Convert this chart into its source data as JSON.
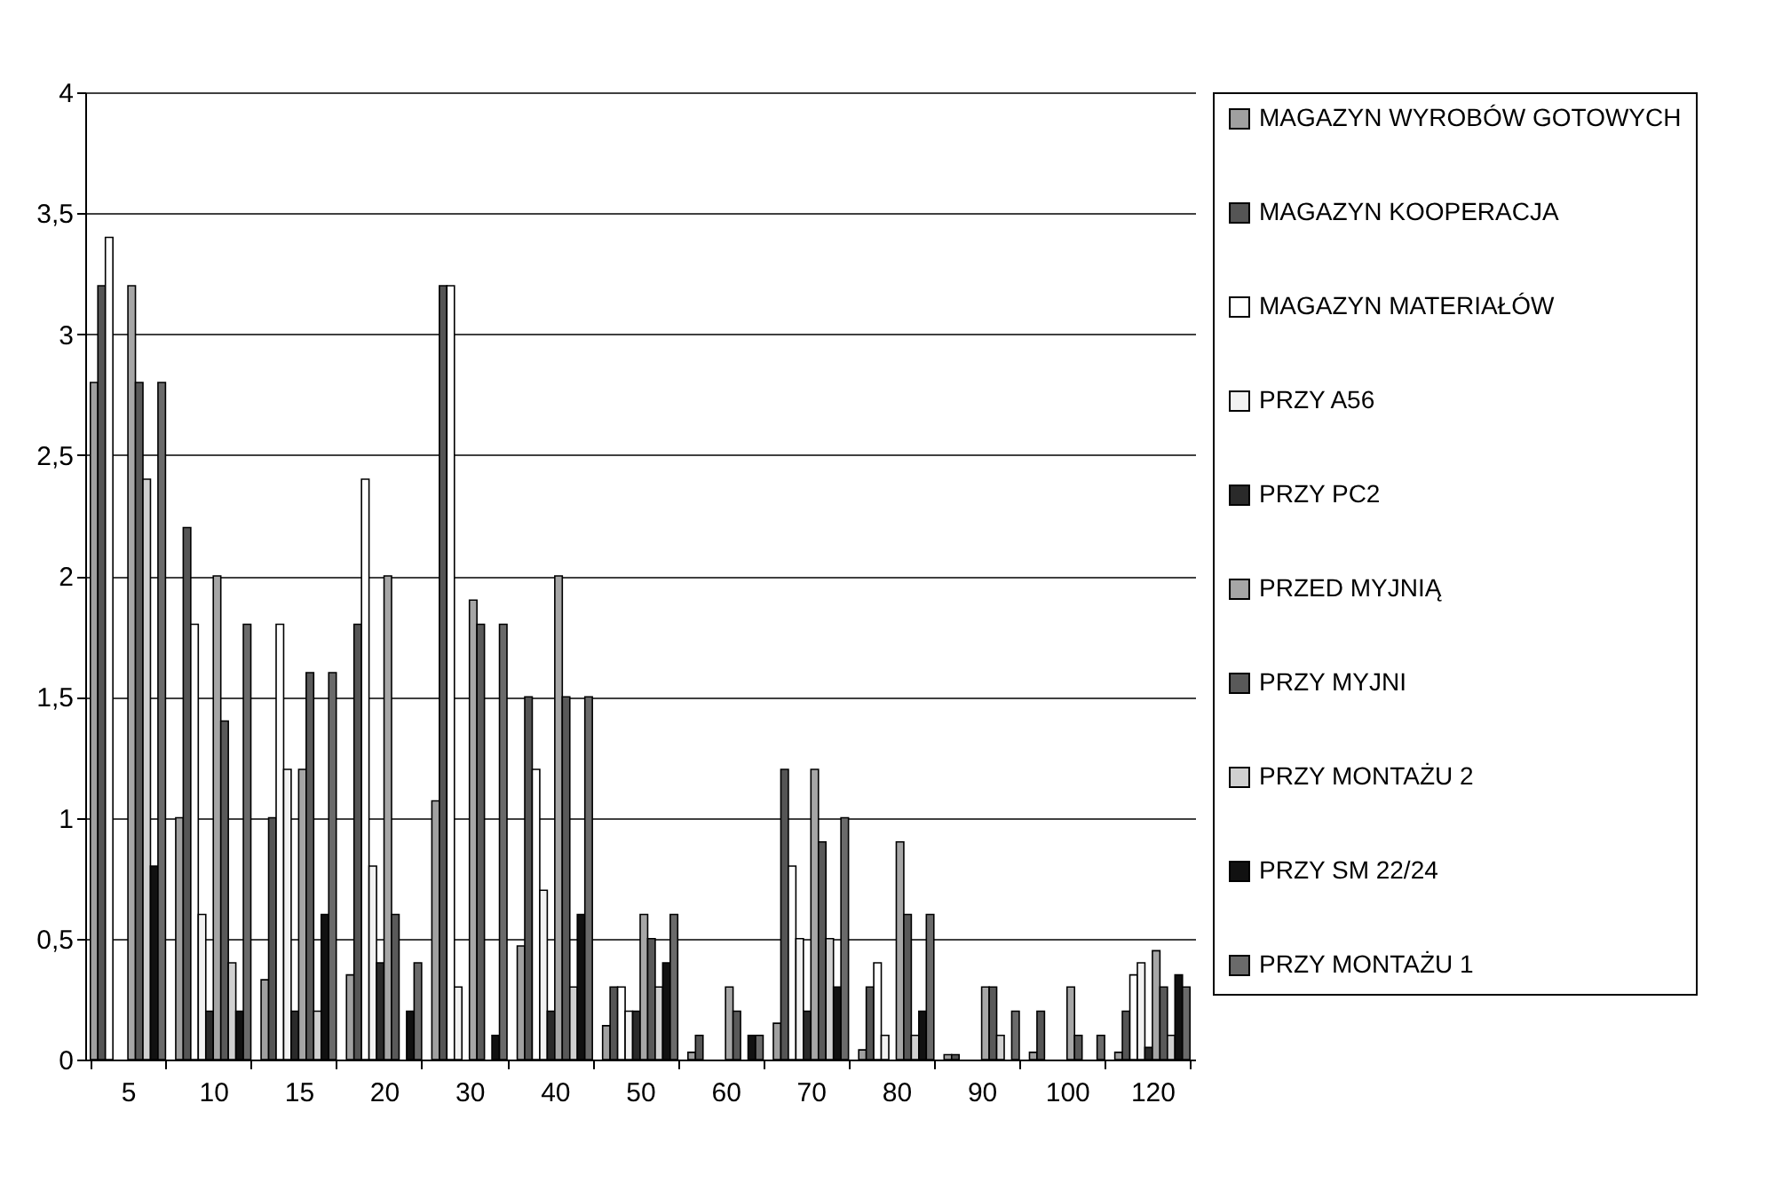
{
  "chart_data": {
    "type": "bar",
    "categories": [
      "5",
      "10",
      "15",
      "20",
      "30",
      "40",
      "50",
      "60",
      "70",
      "80",
      "90",
      "100",
      "120"
    ],
    "series": [
      {
        "name": "MAGAZYN WYROBÓW GOTOWYCH",
        "color": "#a0a0a0",
        "values": [
          2.8,
          1.0,
          0.33,
          0.35,
          1.07,
          0.47,
          0.14,
          0.03,
          0.15,
          0.04,
          0.02,
          0.03,
          0.03
        ]
      },
      {
        "name": "MAGAZYN KOOPERACJA",
        "color": "#555555",
        "values": [
          3.2,
          2.2,
          1.0,
          1.8,
          3.2,
          1.5,
          0.3,
          0.1,
          1.2,
          0.3,
          0.02,
          0.2,
          0.2
        ]
      },
      {
        "name": "MAGAZYN MATERIAŁÓW",
        "color": "#ffffff",
        "values": [
          3.4,
          1.8,
          1.8,
          2.4,
          3.2,
          1.2,
          0.3,
          0,
          0.8,
          0.4,
          0,
          0,
          0.35
        ]
      },
      {
        "name": "PRZY A56",
        "color": "#f2f2f2",
        "values": [
          0,
          0.6,
          1.2,
          0.8,
          0.3,
          0.7,
          0.2,
          0,
          0.5,
          0.1,
          0,
          0,
          0.4
        ]
      },
      {
        "name": "PRZY PC2",
        "color": "#2a2a2a",
        "values": [
          0,
          0.2,
          0.2,
          0.4,
          0,
          0.2,
          0.2,
          0,
          0.2,
          0,
          0,
          0,
          0.05
        ]
      },
      {
        "name": "PRZED MYJNIĄ",
        "color": "#a6a6a6",
        "values": [
          3.2,
          2.0,
          1.2,
          2.0,
          1.9,
          2.0,
          0.6,
          0.3,
          1.2,
          0.9,
          0.3,
          0.3,
          0.45
        ]
      },
      {
        "name": "PRZY MYJNI",
        "color": "#595959",
        "values": [
          2.8,
          1.4,
          1.6,
          0.6,
          1.8,
          1.5,
          0.5,
          0.2,
          0.9,
          0.6,
          0.3,
          0.1,
          0.3
        ]
      },
      {
        "name": "PRZY MONTAŻU 2",
        "color": "#d0d0d0",
        "values": [
          2.4,
          0.4,
          0.2,
          0,
          0,
          0.3,
          0.3,
          0,
          0.5,
          0.1,
          0.1,
          0,
          0.1
        ]
      },
      {
        "name": "PRZY SM 22/24",
        "color": "#111111",
        "values": [
          0.8,
          0.2,
          0.6,
          0.2,
          0.1,
          0.6,
          0.4,
          0.1,
          0.3,
          0.2,
          0,
          0,
          0.35
        ]
      },
      {
        "name": "PRZY MONTAŻU 1",
        "color": "#6a6a6a",
        "values": [
          2.8,
          1.8,
          1.6,
          0.4,
          1.8,
          1.5,
          0.6,
          0.1,
          1.0,
          0.6,
          0.2,
          0.1,
          0.3
        ]
      }
    ],
    "ylim": [
      0,
      4
    ],
    "yticks": [
      0,
      {
        "value": 0.5,
        "label": "0,5"
      },
      1,
      {
        "value": 1.5,
        "label": "1,5"
      },
      2,
      {
        "value": 2.5,
        "label": "2,5"
      },
      3,
      {
        "value": 3.5,
        "label": "3,5"
      },
      4
    ],
    "grid": "y",
    "legend": "right"
  }
}
